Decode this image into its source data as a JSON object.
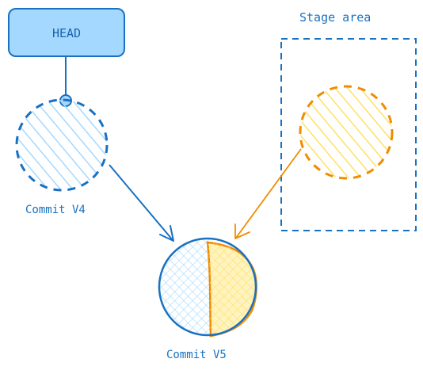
{
  "head": {
    "label": "HEAD"
  },
  "stage_area": {
    "label": "Stage area"
  },
  "commit_v4": {
    "label": "Commit V4"
  },
  "commit_v5": {
    "label": "Commit V5"
  },
  "colors": {
    "blue": "#1971c2",
    "blue_fill": "#a5d8ff",
    "orange": "#f08c00",
    "yellow_fill": "#ffec99"
  }
}
